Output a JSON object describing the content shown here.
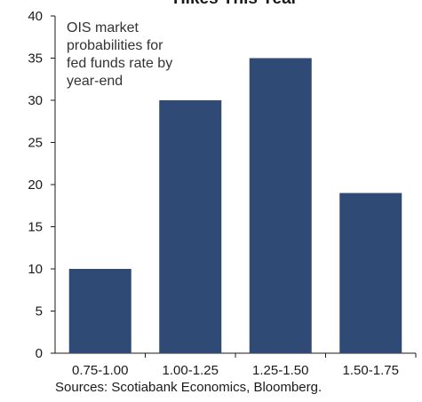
{
  "chart_data": {
    "type": "bar",
    "title": "Hikes This Year",
    "categories": [
      "0.75-1.00",
      "1.00-1.25",
      "1.25-1.50",
      "1.50-1.75"
    ],
    "values": [
      10,
      30,
      35,
      19
    ],
    "ylim": [
      0,
      40
    ],
    "yticks": [
      0,
      5,
      10,
      15,
      20,
      25,
      30,
      35,
      40
    ],
    "grid": false,
    "annotation_lines": [
      "OIS market",
      "probabilities for",
      "fed funds rate by",
      "year-end"
    ],
    "bar_color": "#2e4a75"
  },
  "source": "Sources: Scotiabank Economics, Bloomberg."
}
